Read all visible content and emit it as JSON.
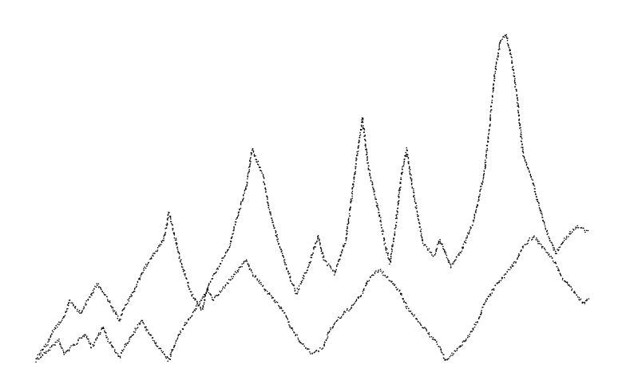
{
  "chart_data": {
    "type": "scatter",
    "title": "",
    "xlabel": "",
    "ylabel": "",
    "xlim": [
      0,
      1
    ],
    "ylim": [
      0,
      1
    ],
    "grid": false,
    "axes_visible": false,
    "marker_color": "#000000",
    "background": "#ffffff",
    "series": [
      {
        "values": [
          [
            0.0,
            0.0
          ],
          [
            0.02,
            0.03
          ],
          [
            0.04,
            0.06
          ],
          [
            0.05,
            0.02
          ],
          [
            0.07,
            0.05
          ],
          [
            0.09,
            0.08
          ],
          [
            0.1,
            0.04
          ],
          [
            0.12,
            0.1
          ],
          [
            0.13,
            0.06
          ],
          [
            0.15,
            0.01
          ],
          [
            0.17,
            0.07
          ],
          [
            0.19,
            0.12
          ],
          [
            0.2,
            0.09
          ],
          [
            0.22,
            0.04
          ],
          [
            0.24,
            0.0
          ],
          [
            0.25,
            0.05
          ],
          [
            0.27,
            0.11
          ],
          [
            0.29,
            0.16
          ],
          [
            0.31,
            0.21
          ],
          [
            0.32,
            0.18
          ],
          [
            0.34,
            0.22
          ],
          [
            0.36,
            0.26
          ],
          [
            0.38,
            0.3
          ],
          [
            0.39,
            0.26
          ],
          [
            0.41,
            0.22
          ],
          [
            0.43,
            0.18
          ],
          [
            0.45,
            0.14
          ],
          [
            0.46,
            0.1
          ],
          [
            0.48,
            0.05
          ],
          [
            0.5,
            0.02
          ],
          [
            0.52,
            0.04
          ],
          [
            0.53,
            0.09
          ],
          [
            0.55,
            0.13
          ],
          [
            0.57,
            0.16
          ],
          [
            0.59,
            0.2
          ],
          [
            0.6,
            0.24
          ],
          [
            0.62,
            0.27
          ],
          [
            0.64,
            0.24
          ],
          [
            0.66,
            0.2
          ],
          [
            0.67,
            0.16
          ],
          [
            0.69,
            0.12
          ],
          [
            0.71,
            0.08
          ],
          [
            0.73,
            0.04
          ],
          [
            0.74,
            0.0
          ],
          [
            0.76,
            0.03
          ],
          [
            0.78,
            0.07
          ],
          [
            0.8,
            0.12
          ],
          [
            0.81,
            0.17
          ],
          [
            0.83,
            0.22
          ],
          [
            0.85,
            0.26
          ],
          [
            0.87,
            0.3
          ],
          [
            0.88,
            0.34
          ],
          [
            0.9,
            0.37
          ],
          [
            0.92,
            0.33
          ],
          [
            0.94,
            0.29
          ],
          [
            0.95,
            0.25
          ],
          [
            0.97,
            0.21
          ],
          [
            0.99,
            0.17
          ],
          [
            1.0,
            0.19
          ]
        ]
      },
      {
        "values": [
          [
            0.0,
            0.01
          ],
          [
            0.02,
            0.05
          ],
          [
            0.03,
            0.09
          ],
          [
            0.05,
            0.13
          ],
          [
            0.06,
            0.18
          ],
          [
            0.08,
            0.14
          ],
          [
            0.1,
            0.2
          ],
          [
            0.11,
            0.23
          ],
          [
            0.13,
            0.18
          ],
          [
            0.15,
            0.12
          ],
          [
            0.16,
            0.16
          ],
          [
            0.18,
            0.22
          ],
          [
            0.19,
            0.26
          ],
          [
            0.21,
            0.31
          ],
          [
            0.23,
            0.36
          ],
          [
            0.24,
            0.44
          ],
          [
            0.26,
            0.3
          ],
          [
            0.28,
            0.2
          ],
          [
            0.3,
            0.15
          ],
          [
            0.31,
            0.22
          ],
          [
            0.33,
            0.28
          ],
          [
            0.35,
            0.34
          ],
          [
            0.36,
            0.41
          ],
          [
            0.38,
            0.52
          ],
          [
            0.39,
            0.63
          ],
          [
            0.41,
            0.55
          ],
          [
            0.42,
            0.46
          ],
          [
            0.44,
            0.34
          ],
          [
            0.46,
            0.24
          ],
          [
            0.47,
            0.2
          ],
          [
            0.49,
            0.27
          ],
          [
            0.51,
            0.37
          ],
          [
            0.52,
            0.3
          ],
          [
            0.54,
            0.26
          ],
          [
            0.56,
            0.36
          ],
          [
            0.57,
            0.48
          ],
          [
            0.58,
            0.61
          ],
          [
            0.59,
            0.72
          ],
          [
            0.6,
            0.58
          ],
          [
            0.62,
            0.44
          ],
          [
            0.63,
            0.35
          ],
          [
            0.64,
            0.29
          ],
          [
            0.65,
            0.4
          ],
          [
            0.66,
            0.55
          ],
          [
            0.67,
            0.63
          ],
          [
            0.68,
            0.52
          ],
          [
            0.69,
            0.43
          ],
          [
            0.7,
            0.35
          ],
          [
            0.72,
            0.31
          ],
          [
            0.73,
            0.36
          ],
          [
            0.75,
            0.28
          ],
          [
            0.77,
            0.33
          ],
          [
            0.79,
            0.41
          ],
          [
            0.81,
            0.55
          ],
          [
            0.82,
            0.7
          ],
          [
            0.83,
            0.86
          ],
          [
            0.84,
            0.95
          ],
          [
            0.85,
            0.97
          ],
          [
            0.86,
            0.9
          ],
          [
            0.87,
            0.78
          ],
          [
            0.88,
            0.62
          ],
          [
            0.9,
            0.52
          ],
          [
            0.92,
            0.4
          ],
          [
            0.94,
            0.32
          ],
          [
            0.96,
            0.37
          ],
          [
            0.98,
            0.4
          ],
          [
            1.0,
            0.38
          ]
        ]
      }
    ]
  }
}
